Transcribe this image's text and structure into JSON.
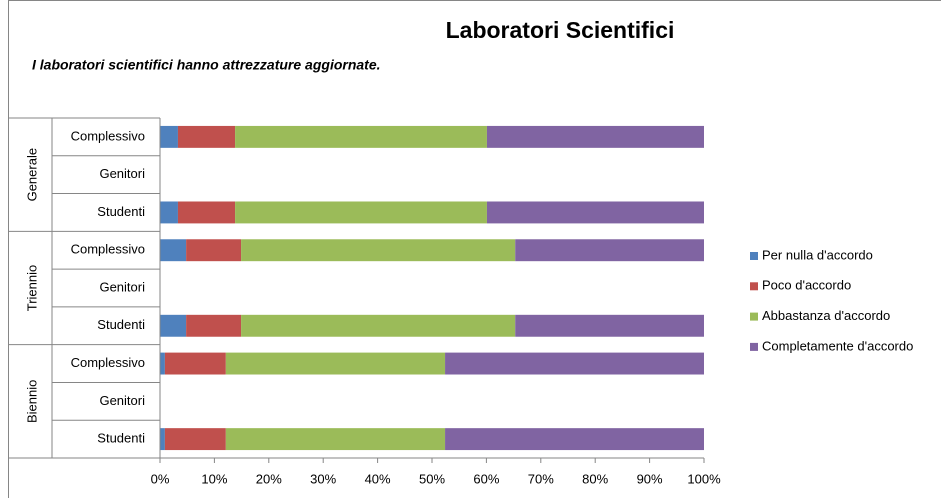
{
  "chart_data": {
    "type": "stacked_bar_horizontal",
    "title": "Laboratori Scientifici",
    "subtitle": "I laboratori scientifici hanno attrezzature aggiornate.",
    "groups": [
      "Generale",
      "Triennio",
      "Biennio"
    ],
    "categories": [
      "Complessivo",
      "Genitori",
      "Studenti",
      "Complessivo",
      "Genitori",
      "Studenti",
      "Complessivo",
      "Genitori",
      "Studenti"
    ],
    "series": [
      {
        "name": "Per nulla d'accordo",
        "color": "#4f81bd",
        "values": [
          3.3,
          null,
          3.3,
          4.8,
          null,
          4.8,
          0.9,
          null,
          0.9
        ]
      },
      {
        "name": "Poco d'accordo",
        "color": "#c0504d",
        "values": [
          10.5,
          null,
          10.5,
          10.1,
          null,
          10.1,
          11.2,
          null,
          11.2
        ]
      },
      {
        "name": "Abbastanza d'accordo",
        "color": "#9bbb59",
        "values": [
          46.3,
          null,
          46.3,
          50.4,
          null,
          50.4,
          40.3,
          null,
          40.3
        ]
      },
      {
        "name": "Completamente d'accordo",
        "color": "#8064a2",
        "values": [
          39.9,
          null,
          39.9,
          34.7,
          null,
          34.7,
          47.6,
          null,
          47.6
        ]
      }
    ],
    "xlim": [
      0,
      100
    ],
    "xticks": [
      {
        "value": 0,
        "label": "0%"
      },
      {
        "value": 10,
        "label": "10%"
      },
      {
        "value": 20,
        "label": "20%"
      },
      {
        "value": 30,
        "label": "30%"
      },
      {
        "value": 40,
        "label": "40%"
      },
      {
        "value": 50,
        "label": "50%"
      },
      {
        "value": 60,
        "label": "60%"
      },
      {
        "value": 70,
        "label": "70%"
      },
      {
        "value": 80,
        "label": "80%"
      },
      {
        "value": 90,
        "label": "90%"
      },
      {
        "value": 100,
        "label": "100%"
      }
    ],
    "grid": false,
    "legend": "right"
  }
}
